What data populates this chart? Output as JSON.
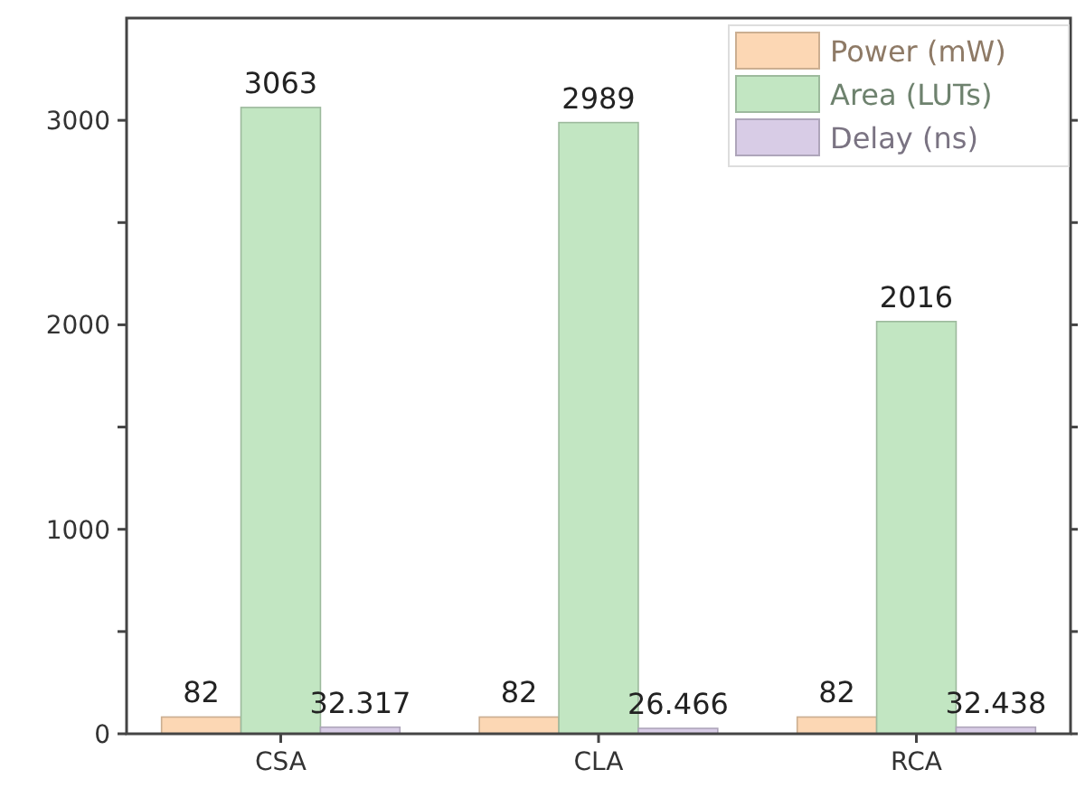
{
  "chart_data": {
    "type": "bar",
    "categories": [
      "CSA",
      "CLA",
      "RCA"
    ],
    "series": [
      {
        "name": "Power (mW)",
        "color": "#fcd7b4",
        "values": [
          82,
          82,
          82
        ]
      },
      {
        "name": "Area (LUTs)",
        "color": "#c2e6c2",
        "values": [
          3063,
          2989,
          2016
        ]
      },
      {
        "name": "Delay (ns)",
        "color": "#d8cce6",
        "values": [
          32.317,
          26.466,
          32.438
        ]
      }
    ],
    "ylim": [
      0,
      3500
    ],
    "yticks": [
      0,
      {
        "value": 500,
        "label": null
      },
      1000,
      {
        "value": 1500,
        "label": null
      },
      2000,
      {
        "value": 2500,
        "label": null
      },
      3000
    ],
    "data_labels": true,
    "legend": "top right",
    "grid": false
  }
}
